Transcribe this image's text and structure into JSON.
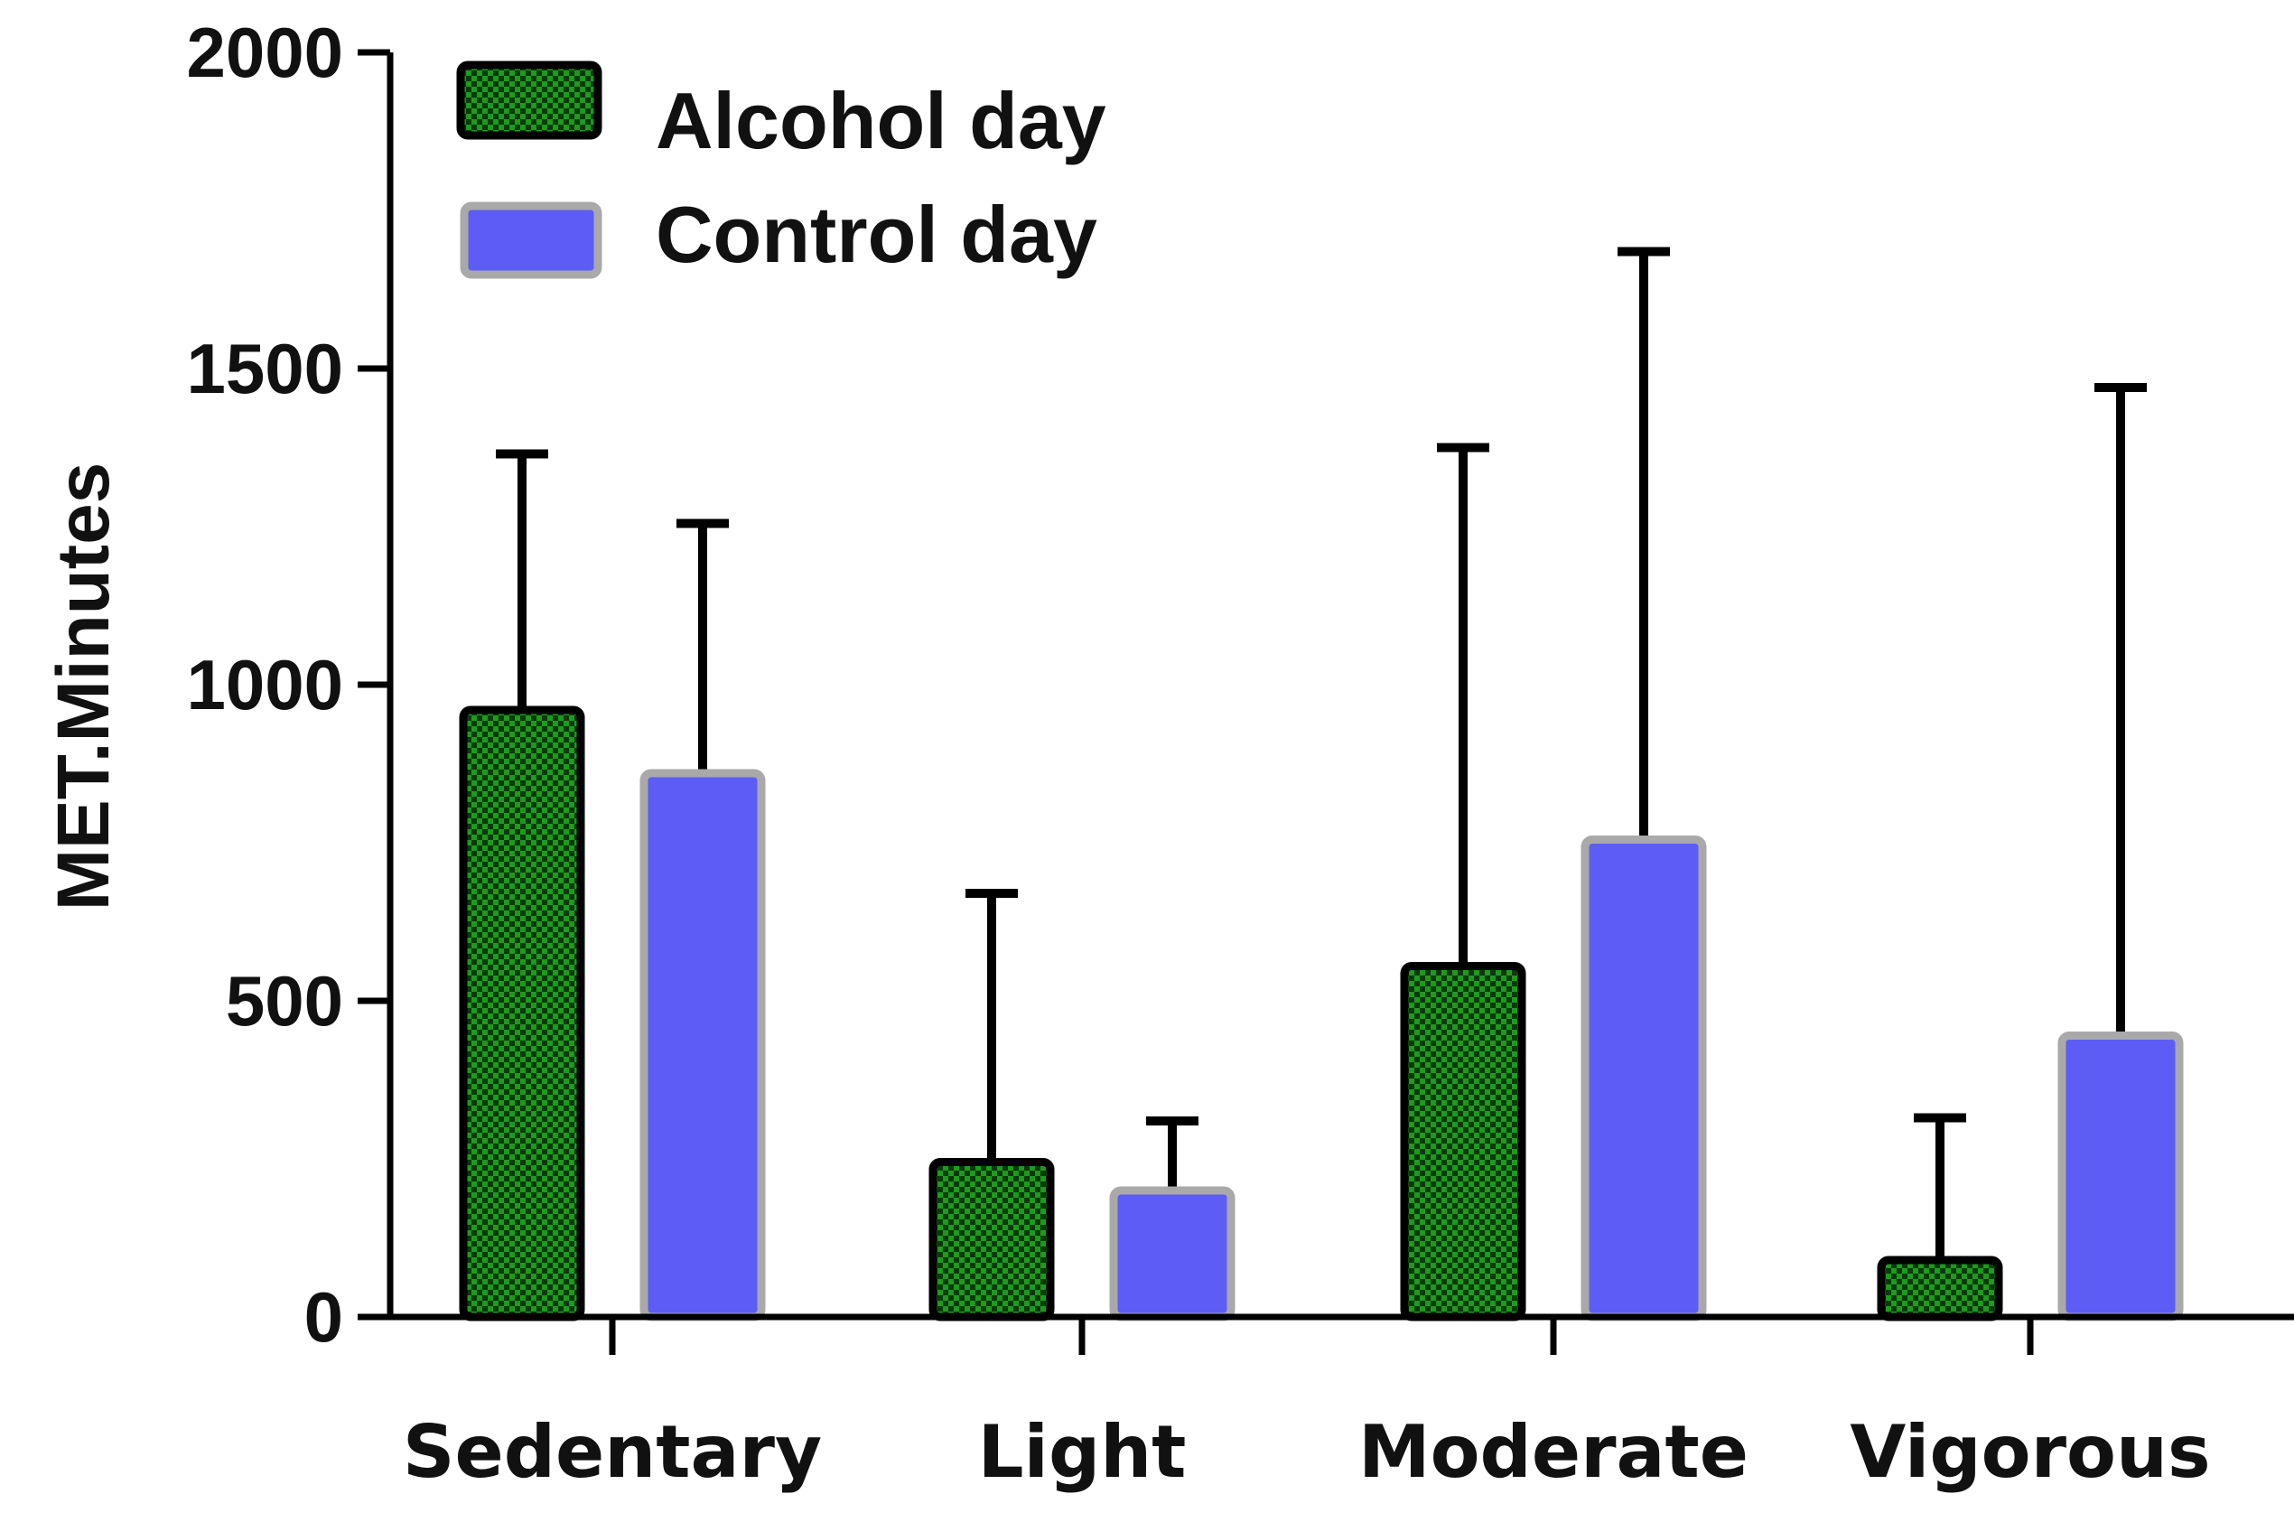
{
  "chart_data": {
    "type": "bar",
    "title": "",
    "xlabel": "",
    "ylabel": "MET.Minutes",
    "ylim": [
      0,
      2000
    ],
    "yticks": [
      0,
      500,
      1000,
      1500,
      2000
    ],
    "ytick_labels": [
      "0",
      "500",
      "1000",
      "1500",
      "2000"
    ],
    "categories": [
      "Sedentary",
      "Light",
      "Moderate",
      "Vigorous"
    ],
    "error_bars": "upper",
    "legend_position": "top-left",
    "series": [
      {
        "name": "Alcohol day",
        "values": [
          960,
          245,
          555,
          90
        ],
        "error_upper": [
          1365,
          670,
          1375,
          315
        ],
        "fill": "#1e9a1e",
        "pattern_dot": "#063a06",
        "stroke": "#000000"
      },
      {
        "name": "Control day",
        "values": [
          860,
          200,
          755,
          445
        ],
        "error_upper": [
          1255,
          310,
          1685,
          1470
        ],
        "fill": "#5d5cf5",
        "stroke": "#a9a9a9"
      }
    ]
  }
}
